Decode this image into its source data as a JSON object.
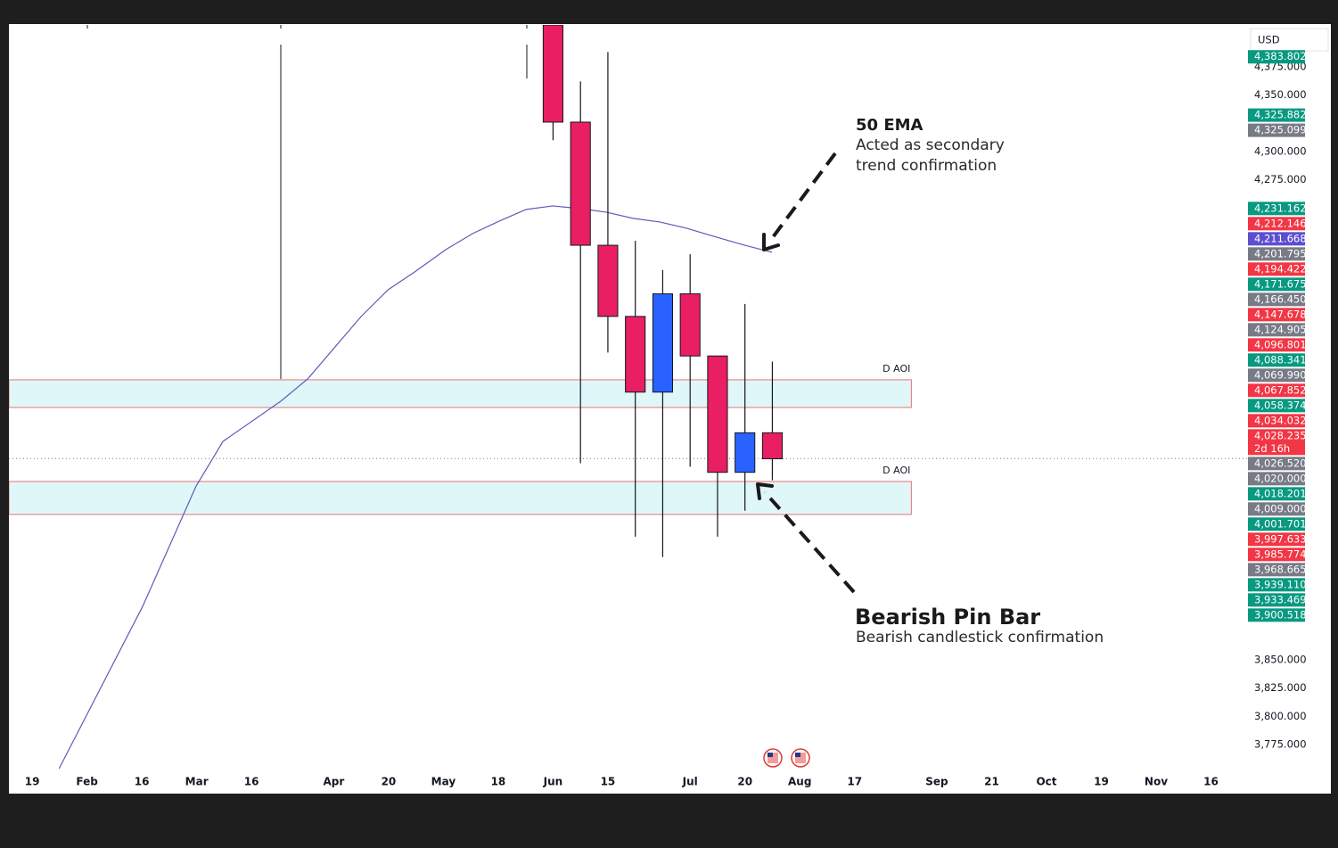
{
  "currency": "USD",
  "chart_data": {
    "type": "candlestick",
    "x": [
      19,
      20,
      21,
      22,
      23,
      24,
      25,
      26,
      27
    ],
    "open": [
      4412,
      4326,
      4217,
      4154,
      4087,
      4174,
      4119,
      4016,
      4051
    ],
    "high": [
      4412,
      4362,
      4388,
      4221,
      4195,
      4209,
      4119,
      4165,
      4114
    ],
    "low": [
      4310,
      4024,
      4122,
      3959,
      3941,
      4021,
      3959,
      3982,
      4009
    ],
    "close": [
      4326,
      4217,
      4154,
      4087,
      4174,
      4119,
      4016,
      4051,
      4028
    ],
    "up_color": "#2962ff",
    "down_color": "#e91e63",
    "xlim": [
      -0.85,
      44.35
    ],
    "xticks": [
      {
        "value": 0,
        "label": "19"
      },
      {
        "value": 2,
        "label": "Feb"
      },
      {
        "value": 4,
        "label": "16"
      },
      {
        "value": 6,
        "label": "Mar"
      },
      {
        "value": 8,
        "label": "16"
      },
      {
        "value": 11,
        "label": "Apr"
      },
      {
        "value": 13,
        "label": "20"
      },
      {
        "value": 15,
        "label": "May"
      },
      {
        "value": 17,
        "label": "18"
      },
      {
        "value": 19,
        "label": "Jun"
      },
      {
        "value": 21,
        "label": "15"
      },
      {
        "value": 24,
        "label": "Jul"
      },
      {
        "value": 26,
        "label": "20"
      },
      {
        "value": 28,
        "label": "Aug"
      },
      {
        "value": 30,
        "label": "17"
      },
      {
        "value": 33,
        "label": "Sep"
      },
      {
        "value": 35,
        "label": "21"
      },
      {
        "value": 37,
        "label": "Oct"
      },
      {
        "value": 39,
        "label": "19"
      },
      {
        "value": 41,
        "label": "Nov"
      },
      {
        "value": 43,
        "label": "16"
      }
    ],
    "ylim": [
      3731.6,
      4412
    ],
    "yticks": [
      {
        "value": 4375,
        "label": "4,375.000"
      },
      {
        "value": 4350,
        "label": "4,350.000"
      },
      {
        "value": 4300,
        "label": "4,300.000"
      },
      {
        "value": 4275,
        "label": "4,275.000"
      },
      {
        "value": 3850,
        "label": "3,850.000"
      },
      {
        "value": 3825,
        "label": "3,825.000"
      },
      {
        "value": 3800,
        "label": "3,800.000"
      },
      {
        "value": 3775,
        "label": "3,775.000"
      }
    ],
    "overlays": [
      {
        "type": "line",
        "color": "#5c5bb8",
        "x": [
          0.98,
          4.03,
          5.98,
          6.96,
          9.07,
          10.05,
          12.0,
          12.98,
          13.95,
          15.09,
          16.07,
          17.04,
          18.02,
          18.99,
          19.97,
          20.94,
          21.92,
          22.89,
          23.87,
          24.85,
          25.98,
          26.99
        ],
        "values": [
          3753.7,
          3897.4,
          4003.9,
          4043.4,
          4079,
          4098.7,
          4154,
          4177.6,
          4193.4,
          4213.2,
          4227.4,
          4238.4,
          4248.7,
          4251.8,
          4249.5,
          4246.3,
          4240.8,
          4237.6,
          4232.1,
          4225,
          4217.1,
          4210.8
        ]
      }
    ],
    "zones": [
      {
        "label": "D AOI",
        "top": 4097.9,
        "bottom": 4073.4,
        "x_end": 32.07
      },
      {
        "label": "D AOI",
        "top": 4007.9,
        "bottom": 3978.7,
        "x_end": 32.07
      }
    ],
    "price_tags": [
      {
        "value": 4383.802,
        "label": "4,383.802",
        "color": "#089981"
      },
      {
        "value": 4325.882,
        "label": "4,325.882",
        "color": "#089981"
      },
      {
        "value": 4325.099,
        "label": "4,325.099",
        "color": "#787b86"
      },
      {
        "value": 4231.162,
        "label": "4,231.162",
        "color": "#089981"
      },
      {
        "value": 4212.146,
        "label": "4,212.146",
        "color": "#f23645"
      },
      {
        "value": 4211.668,
        "label": "4,211.668",
        "color": "#5b4fcf"
      },
      {
        "value": 4201.795,
        "label": "4,201.795",
        "color": "#787b86"
      },
      {
        "value": 4194.422,
        "label": "4,194.422",
        "color": "#f23645"
      },
      {
        "value": 4171.675,
        "label": "4,171.675",
        "color": "#089981"
      },
      {
        "value": 4166.45,
        "label": "4,166.450",
        "color": "#787b86"
      },
      {
        "value": 4147.678,
        "label": "4,147.678",
        "color": "#f23645"
      },
      {
        "value": 4124.905,
        "label": "4,124.905",
        "color": "#787b86"
      },
      {
        "value": 4096.801,
        "label": "4,096.801",
        "color": "#f23645"
      },
      {
        "value": 4088.341,
        "label": "4,088.341",
        "color": "#089981"
      },
      {
        "value": 4069.99,
        "label": "4,069.990",
        "color": "#787b86"
      },
      {
        "value": 4067.852,
        "label": "4,067.852",
        "color": "#f23645"
      },
      {
        "value": 4058.374,
        "label": "4,058.374",
        "color": "#089981"
      },
      {
        "value": 4034.032,
        "label": "4,034.032",
        "color": "#f23645"
      },
      {
        "value": 4028.235,
        "label": "4,028.235",
        "color": "#f23645",
        "countdown": "2d 16h"
      },
      {
        "value": 4026.52,
        "label": "4,026.520",
        "color": "#787b86"
      },
      {
        "value": 4020,
        "label": "4,020.000",
        "color": "#787b86"
      },
      {
        "value": 4018.201,
        "label": "4,018.201",
        "color": "#089981"
      },
      {
        "value": 4009,
        "label": "4,009.000",
        "color": "#787b86"
      },
      {
        "value": 4001.701,
        "label": "4,001.701",
        "color": "#089981"
      },
      {
        "value": 3997.633,
        "label": "3,997.633",
        "color": "#f23645"
      },
      {
        "value": 3985.774,
        "label": "3,985.774",
        "color": "#f23645"
      },
      {
        "value": 3968.665,
        "label": "3,968.665",
        "color": "#787b86"
      },
      {
        "value": 3939.11,
        "label": "3,939.110",
        "color": "#089981"
      },
      {
        "value": 3933.469,
        "label": "3,933.469",
        "color": "#089981"
      },
      {
        "value": 3900.518,
        "label": "3,900.518",
        "color": "#089981"
      }
    ],
    "annotations": [
      {
        "title": "50 EMA",
        "lines": [
          "Acted as secondary",
          "trend confirmation"
        ]
      },
      {
        "title": "Bearish Pin Bar",
        "lines": [
          "Bearish candlestick confirmation"
        ]
      }
    ]
  }
}
